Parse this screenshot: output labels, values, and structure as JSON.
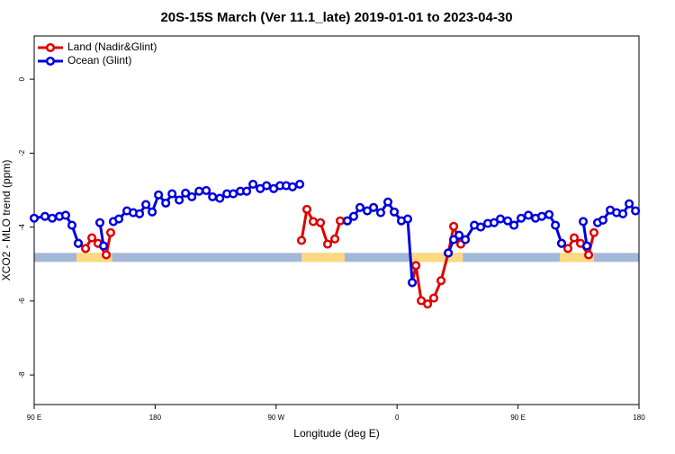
{
  "chart_data": {
    "type": "line",
    "title": "20S-15S March (Ver 11.1_late)   2019-01-01 to 2023-04-30",
    "x_label": "Longitude (deg E)",
    "y_label": "XCO2 - MLO trend (ppm)",
    "xlim": [
      90,
      540
    ],
    "xticks": [
      {
        "value": 90,
        "label": "90 E"
      },
      {
        "value": 180,
        "label": "180"
      },
      {
        "value": 270,
        "label": "90 W"
      },
      {
        "value": 360,
        "label": "0"
      },
      {
        "value": 450,
        "label": "90 E"
      },
      {
        "value": 540,
        "label": "180"
      }
    ],
    "ylim": [
      -8.8,
      1.17
    ],
    "yticks": [
      0,
      -2,
      -4,
      -6,
      -8
    ],
    "legend": "top-left",
    "mask": {
      "y": -4.82,
      "land_color": "#fdd97f",
      "ocean_color": "#a3b8d8",
      "land": [
        [
          121.5,
          148
        ],
        [
          289,
          321
        ],
        [
          369,
          409
        ],
        [
          481,
          506.5
        ]
      ]
    },
    "series": [
      {
        "name": "Land (Nadir&Glint)",
        "color": "#e00000",
        "x": [
          122.8,
          128.2,
          132.9,
          137.5,
          143.6,
          146.9,
          null,
          288.9,
          292.9,
          297.6,
          303,
          308.3,
          313.7,
          317.7,
          323,
          null,
          371.3,
          374,
          378,
          382.7,
          387.3,
          392.7,
          398.1,
          402.1,
          407.4,
          null,
          482.4,
          487.1,
          491.8,
          496.5,
          502.5,
          506.5
        ],
        "values": [
          -4.44,
          -4.58,
          -4.29,
          -4.44,
          -4.75,
          -4.15,
          null,
          -4.36,
          -3.52,
          -3.85,
          -3.88,
          -4.46,
          -4.32,
          -3.83,
          -3.83,
          null,
          -5.5,
          -5.04,
          -5.99,
          -6.08,
          -5.92,
          -5.45,
          -4.7,
          -3.98,
          -4.46,
          null,
          -4.44,
          -4.58,
          -4.29,
          -4.44,
          -4.75,
          -4.15
        ]
      },
      {
        "name": "Ocean (Glint)",
        "color": "#0000e0",
        "x": [
          90,
          98,
          103.4,
          108.8,
          113.4,
          118.1,
          122.8,
          null,
          138.9,
          141.6,
          null,
          148.9,
          153,
          159,
          163.7,
          168.4,
          173.1,
          177.8,
          182.5,
          187.9,
          192.6,
          197.9,
          202.6,
          207.3,
          212.7,
          218,
          222.7,
          228.1,
          233.4,
          238.1,
          243.4,
          248.1,
          252.8,
          258.2,
          262.9,
          268.2,
          272.9,
          277.5,
          282.2,
          287.6,
          null,
          323,
          327.7,
          332.4,
          337.8,
          342.5,
          347.8,
          353.2,
          357.9,
          363.2,
          367.9,
          371.3,
          null,
          398.1,
          402.1,
          406.1,
          410.8,
          417.5,
          422.2,
          427.5,
          432.2,
          436.9,
          442.3,
          447,
          452.3,
          457.7,
          463,
          467.7,
          473.1,
          477.8,
          482.4,
          null,
          498.5,
          501.2,
          null,
          509.2,
          513.2,
          518.6,
          523.3,
          528,
          532.7,
          537.4
        ],
        "values": [
          -3.76,
          -3.71,
          -3.76,
          -3.71,
          -3.68,
          -3.95,
          -4.44,
          null,
          -3.88,
          -4.51,
          null,
          -3.85,
          -3.78,
          -3.56,
          -3.61,
          -3.64,
          -3.39,
          -3.59,
          -3.13,
          -3.35,
          -3.1,
          -3.27,
          -3.08,
          -3.18,
          -3.03,
          -3.01,
          -3.18,
          -3.22,
          -3.1,
          -3.1,
          -3.03,
          -3.03,
          -2.84,
          -2.96,
          -2.88,
          -2.96,
          -2.88,
          -2.88,
          -2.91,
          -2.84,
          null,
          -3.83,
          -3.71,
          -3.47,
          -3.56,
          -3.47,
          -3.61,
          -3.32,
          -3.59,
          -3.83,
          -3.78,
          -5.5,
          null,
          -4.7,
          -4.34,
          -4.22,
          -4.34,
          -3.95,
          -4.0,
          -3.9,
          -3.88,
          -3.78,
          -3.83,
          -3.95,
          -3.76,
          -3.68,
          -3.76,
          -3.71,
          -3.66,
          -3.95,
          -4.44,
          null,
          -3.85,
          -4.51,
          null,
          -3.88,
          -3.81,
          -3.54,
          -3.61,
          -3.64,
          -3.37,
          -3.56
        ]
      }
    ]
  }
}
